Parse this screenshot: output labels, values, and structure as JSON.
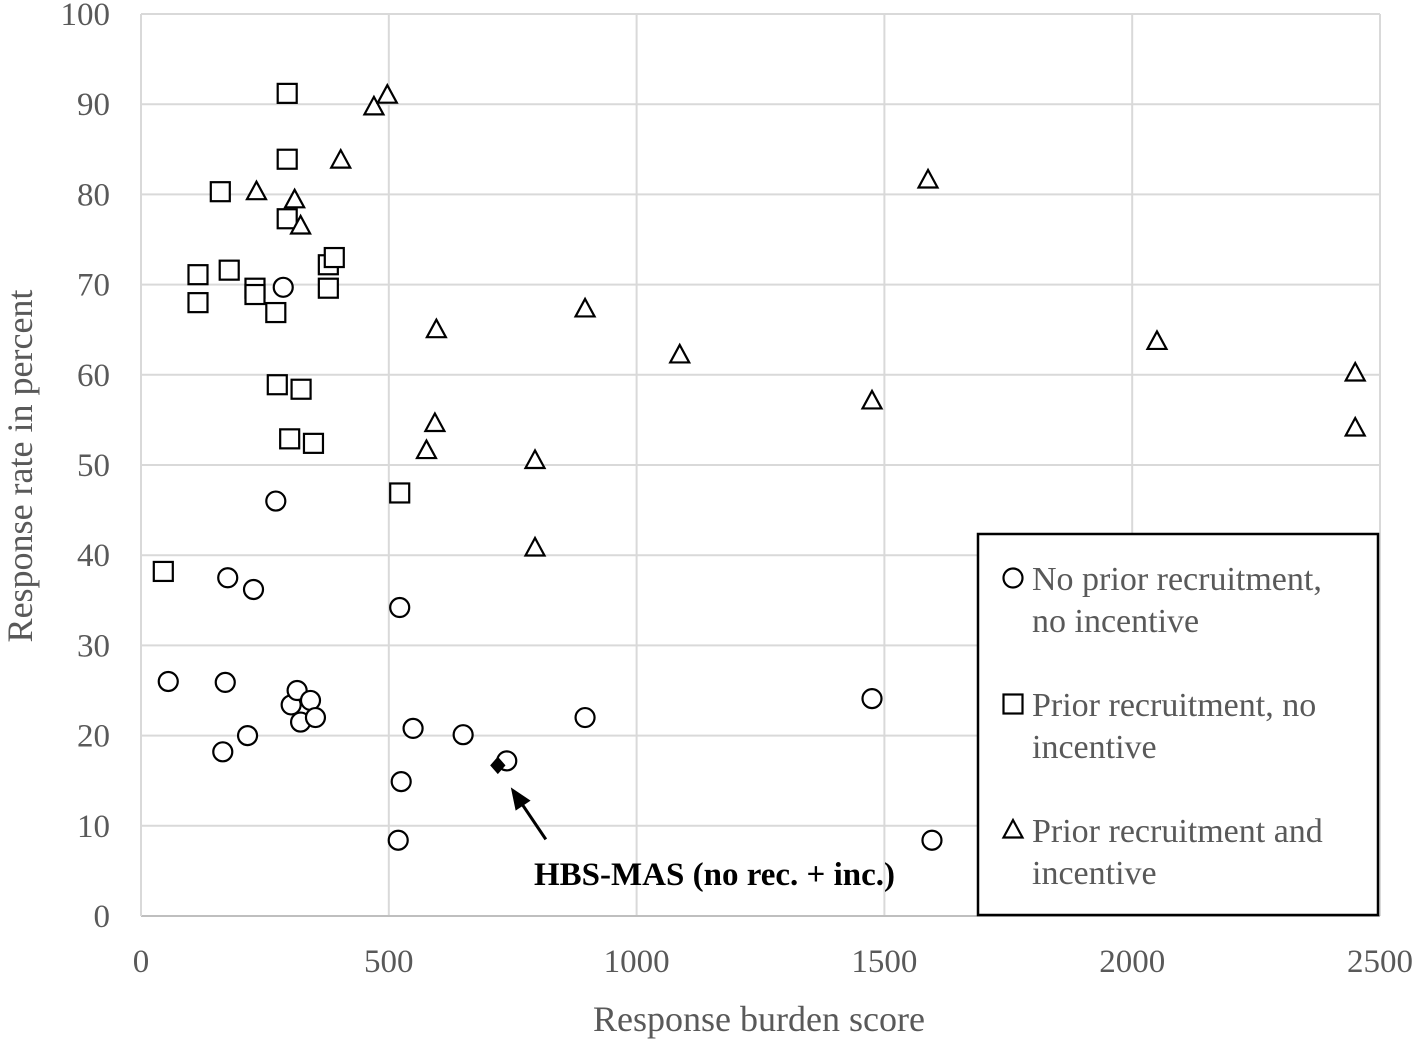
{
  "chart_data": {
    "type": "scatter",
    "xlabel": "Response burden score",
    "ylabel": "Response rate in percent",
    "xlim": [
      0,
      2500
    ],
    "ylim": [
      0,
      100
    ],
    "xticks": [
      "0",
      "500",
      "1000",
      "1500",
      "2000",
      "2500"
    ],
    "yticks": [
      "0",
      "10",
      "20",
      "30",
      "40",
      "50",
      "60",
      "70",
      "80",
      "90",
      "100"
    ],
    "grid": true,
    "legend_position": "bottom-right",
    "series": [
      {
        "name": "No prior recruitment, no incentive",
        "legend_lines": [
          "No prior recruitment,",
          "no incentive"
        ],
        "marker": "circle",
        "points": [
          {
            "x": 55,
            "y": 26
          },
          {
            "x": 165,
            "y": 18.2
          },
          {
            "x": 170,
            "y": 25.9
          },
          {
            "x": 175,
            "y": 37.5
          },
          {
            "x": 215,
            "y": 20
          },
          {
            "x": 227,
            "y": 36.2
          },
          {
            "x": 272,
            "y": 46
          },
          {
            "x": 287,
            "y": 69.7
          },
          {
            "x": 303,
            "y": 23.4
          },
          {
            "x": 315,
            "y": 25
          },
          {
            "x": 322,
            "y": 21.5
          },
          {
            "x": 342,
            "y": 23.9
          },
          {
            "x": 352,
            "y": 22
          },
          {
            "x": 519,
            "y": 8.4
          },
          {
            "x": 522,
            "y": 34.2
          },
          {
            "x": 525,
            "y": 14.9
          },
          {
            "x": 549,
            "y": 20.8
          },
          {
            "x": 650,
            "y": 20.1
          },
          {
            "x": 738,
            "y": 17.2
          },
          {
            "x": 896,
            "y": 22
          },
          {
            "x": 1475,
            "y": 24.1
          },
          {
            "x": 1596,
            "y": 8.4
          }
        ]
      },
      {
        "name": "Prior recruitment, no incentive",
        "legend_lines": [
          "Prior recruitment, no",
          "incentive"
        ],
        "marker": "square",
        "points": [
          {
            "x": 45,
            "y": 38.2
          },
          {
            "x": 115,
            "y": 71.1
          },
          {
            "x": 115,
            "y": 68
          },
          {
            "x": 160,
            "y": 80.3
          },
          {
            "x": 178,
            "y": 71.6
          },
          {
            "x": 230,
            "y": 69.6
          },
          {
            "x": 230,
            "y": 68.9
          },
          {
            "x": 272,
            "y": 66.9
          },
          {
            "x": 275,
            "y": 58.9
          },
          {
            "x": 295,
            "y": 91.2
          },
          {
            "x": 295,
            "y": 83.9
          },
          {
            "x": 295,
            "y": 77.3
          },
          {
            "x": 300,
            "y": 52.9
          },
          {
            "x": 323,
            "y": 58.4
          },
          {
            "x": 348,
            "y": 52.4
          },
          {
            "x": 378,
            "y": 72.2
          },
          {
            "x": 378,
            "y": 69.6
          },
          {
            "x": 390,
            "y": 73
          },
          {
            "x": 522,
            "y": 46.9
          }
        ]
      },
      {
        "name": "Prior recruitment and incentive",
        "legend_lines": [
          "Prior recruitment and",
          "incentive"
        ],
        "marker": "triangle",
        "points": [
          {
            "x": 233,
            "y": 80.3
          },
          {
            "x": 310,
            "y": 79.4
          },
          {
            "x": 322,
            "y": 76.5
          },
          {
            "x": 403,
            "y": 83.8
          },
          {
            "x": 470,
            "y": 89.7
          },
          {
            "x": 497,
            "y": 91
          },
          {
            "x": 576,
            "y": 51.6
          },
          {
            "x": 593,
            "y": 54.6
          },
          {
            "x": 596,
            "y": 65
          },
          {
            "x": 795,
            "y": 50.5
          },
          {
            "x": 795,
            "y": 40.8
          },
          {
            "x": 896,
            "y": 67.3
          },
          {
            "x": 1087,
            "y": 62.2
          },
          {
            "x": 1475,
            "y": 57.1
          },
          {
            "x": 1588,
            "y": 81.6
          },
          {
            "x": 2050,
            "y": 63.7
          },
          {
            "x": 2450,
            "y": 60.2
          },
          {
            "x": 2450,
            "y": 54.1
          }
        ]
      }
    ],
    "highlight": {
      "label": "HBS-MAS (no rec. + inc.)",
      "marker": "diamond",
      "x": 720,
      "y": 16.7
    }
  }
}
